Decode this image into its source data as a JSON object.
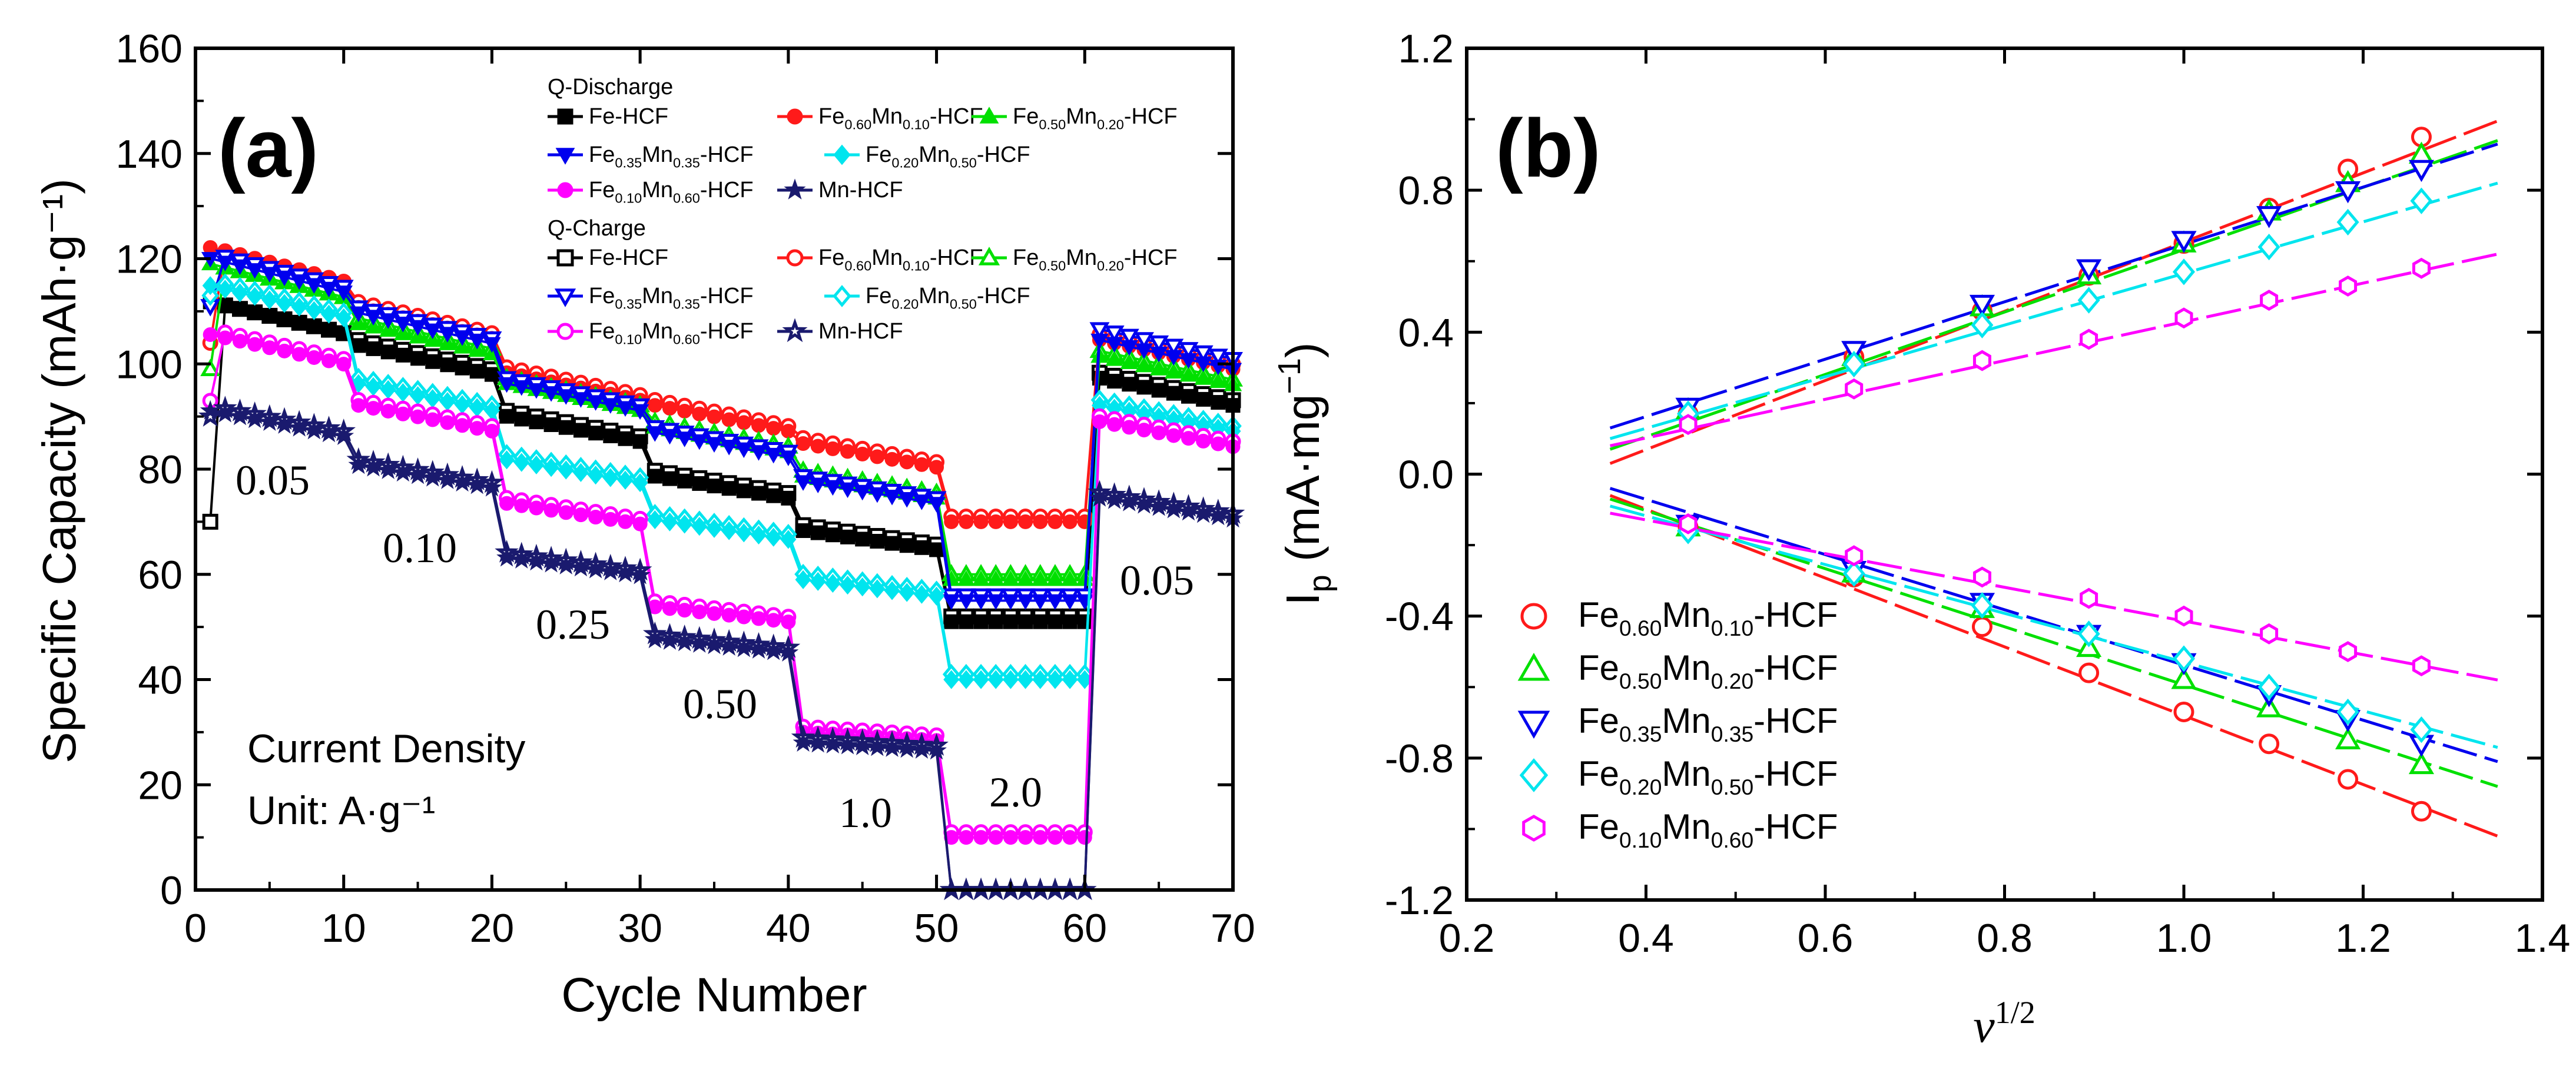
{
  "chart_data": [
    {
      "panel": "(a)",
      "type": "line",
      "xlabel": "Cycle Number",
      "ylabel": "Specific Capacity (mAh·g⁻¹)",
      "xlim": [
        0,
        70
      ],
      "ylim": [
        0,
        160
      ],
      "xticks": [
        "0",
        "10",
        "20",
        "30",
        "40",
        "50",
        "60",
        "70"
      ],
      "yticks": [
        "0",
        "20",
        "40",
        "60",
        "80",
        "100",
        "120",
        "140",
        "160"
      ],
      "legend_groups": [
        "Q-Discharge",
        "Q-Charge"
      ],
      "rate_labels": [
        "0.05",
        "0.10",
        "0.25",
        "0.50",
        "1.0",
        "2.0",
        "0.05"
      ],
      "annotation_title": "Current Density",
      "annotation_unit": "Unit: A·g⁻¹",
      "series": [
        {
          "name": "Fe-HCF",
          "color": "#000000",
          "marker": "square",
          "discharge_levels": [
            108,
            100,
            87,
            76,
            66,
            51,
            94
          ],
          "charge_levels": [
            108,
            101,
            88,
            77,
            67,
            52,
            95
          ],
          "charge_first": 70
        },
        {
          "name": "Fe0.60Mn0.10-HCF",
          "color": "#ff1a1a",
          "marker": "circle",
          "discharge_levels": [
            118,
            107,
            95,
            89,
            82,
            70,
            101
          ],
          "charge_levels": [
            118,
            108,
            96,
            90,
            83,
            71,
            102
          ],
          "charge_first": 104
        },
        {
          "name": "Fe0.50Mn0.20-HCF",
          "color": "#00e000",
          "marker": "triangle-up",
          "discharge_levels": [
            115,
            104,
            93,
            85,
            76,
            59,
            98
          ],
          "charge_levels": [
            115,
            105,
            94,
            86,
            77,
            60,
            99
          ],
          "charge_first": 99
        },
        {
          "name": "Fe0.35Mn0.35-HCF",
          "color": "#0000ee",
          "marker": "triangle-down",
          "discharge_levels": [
            116,
            106,
            93,
            84,
            75,
            55,
            101
          ],
          "charge_levels": [
            117,
            107,
            94,
            85,
            76,
            56,
            103
          ],
          "charge_first": 111
        },
        {
          "name": "Fe0.20Mn0.50-HCF",
          "color": "#00e5ee",
          "marker": "diamond",
          "discharge_levels": [
            111,
            93,
            79,
            68,
            57,
            40,
            89
          ],
          "charge_levels": [
            112,
            94,
            80,
            69,
            58,
            41,
            90
          ],
          "charge_first": 113
        },
        {
          "name": "Fe0.10Mn0.60-HCF",
          "color": "#ff00ff",
          "marker": "circle",
          "discharge_levels": [
            102,
            89,
            71,
            52,
            29,
            10,
            86
          ],
          "charge_levels": [
            103,
            90,
            72,
            53,
            30,
            11,
            87
          ],
          "charge_first": 93
        },
        {
          "name": "Mn-HCF",
          "color": "#1a1a6e",
          "marker": "star",
          "discharge_levels": [
            88,
            78,
            61,
            46,
            27,
            0,
            72
          ],
          "charge_levels": [
            89,
            79,
            62,
            47,
            28,
            0,
            73
          ],
          "charge_first": 90
        }
      ]
    },
    {
      "panel": "(b)",
      "type": "scatter",
      "xlabel": "ν¹ᐟ²",
      "ylabel": "Ip (mA·mg⁻¹)",
      "xlim": [
        0.2,
        1.4
      ],
      "ylim": [
        -1.2,
        1.2
      ],
      "xticks": [
        "0.2",
        "0.4",
        "0.6",
        "0.8",
        "1.0",
        "1.2",
        "1.4"
      ],
      "yticks": [
        "-1.2",
        "-0.8",
        "-0.4",
        "0.0",
        "0.4",
        "0.8",
        "1.2"
      ],
      "x": [
        0.447,
        0.632,
        0.775,
        0.894,
        1.0,
        1.095,
        1.183,
        1.265
      ],
      "fit_range": [
        0.36,
        1.35
      ],
      "series": [
        {
          "name": "Fe0.60Mn0.10-HCF",
          "color": "#ff1a1a",
          "marker": "circle",
          "anodic": [
            0.17,
            0.33,
            0.46,
            0.56,
            0.65,
            0.75,
            0.86,
            0.95
          ],
          "cathodic": [
            -0.15,
            -0.29,
            -0.43,
            -0.56,
            -0.67,
            -0.76,
            -0.86,
            -0.95
          ],
          "anodic_fit": [
            0.03,
            0.995
          ],
          "cathodic_fit": [
            -0.06,
            -1.02
          ]
        },
        {
          "name": "Fe0.50Mn0.20-HCF",
          "color": "#00e000",
          "marker": "triangle-up",
          "anodic": [
            0.18,
            0.33,
            0.47,
            0.56,
            0.65,
            0.74,
            0.82,
            0.9
          ],
          "cathodic": [
            -0.15,
            -0.28,
            -0.38,
            -0.49,
            -0.58,
            -0.66,
            -0.75,
            -0.82
          ],
          "anodic_fit": [
            0.07,
            0.94
          ],
          "cathodic_fit": [
            -0.07,
            -0.88
          ]
        },
        {
          "name": "Fe0.35Mn0.35-HCF",
          "color": "#0000ee",
          "marker": "triangle-down",
          "anodic": [
            0.19,
            0.35,
            0.48,
            0.58,
            0.66,
            0.73,
            0.8,
            0.86
          ],
          "cathodic": [
            -0.14,
            -0.27,
            -0.36,
            -0.45,
            -0.53,
            -0.62,
            -0.69,
            -0.76
          ],
          "anodic_fit": [
            0.13,
            0.93
          ],
          "cathodic_fit": [
            -0.04,
            -0.81
          ]
        },
        {
          "name": "Fe0.20Mn0.50-HCF",
          "color": "#00e5ee",
          "marker": "diamond",
          "anodic": [
            0.17,
            0.31,
            0.42,
            0.49,
            0.57,
            0.64,
            0.71,
            0.77
          ],
          "cathodic": [
            -0.16,
            -0.28,
            -0.37,
            -0.45,
            -0.52,
            -0.6,
            -0.67,
            -0.72
          ],
          "anodic_fit": [
            0.1,
            0.82
          ],
          "cathodic_fit": [
            -0.09,
            -0.77
          ]
        },
        {
          "name": "Fe0.10Mn0.60-HCF",
          "color": "#ff00ff",
          "marker": "hexagon",
          "anodic": [
            0.14,
            0.24,
            0.32,
            0.38,
            0.44,
            0.49,
            0.53,
            0.58
          ],
          "cathodic": [
            -0.14,
            -0.23,
            -0.29,
            -0.35,
            -0.4,
            -0.45,
            -0.5,
            -0.54
          ],
          "anodic_fit": [
            0.08,
            0.62
          ],
          "cathodic_fit": [
            -0.11,
            -0.58
          ]
        }
      ]
    }
  ]
}
